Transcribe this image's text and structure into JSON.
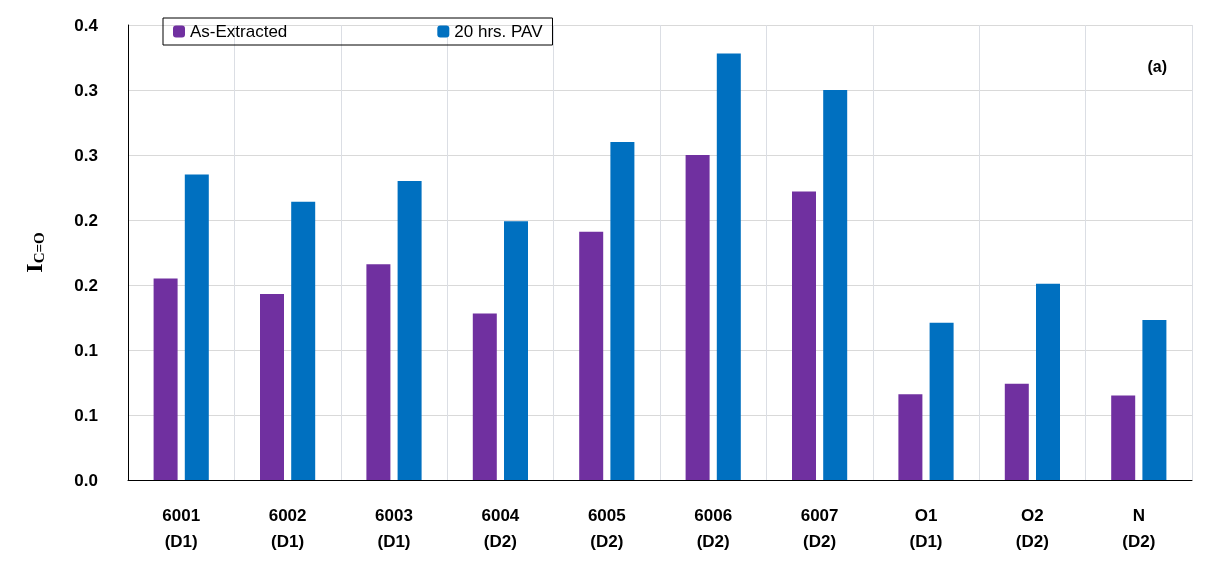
{
  "chart_data": {
    "type": "bar",
    "categories": [
      "6001\n(D1)",
      "6002\n(D1)",
      "6003\n(D1)",
      "6004\n(D2)",
      "6005\n(D2)",
      "6006\n(D2)",
      "6007\n(D2)",
      "O1\n(D1)",
      "O2\n(D2)",
      "N\n(D2)"
    ],
    "series": [
      {
        "name": "As-Extracted",
        "color": "#7030a0",
        "values": [
          0.155,
          0.143,
          0.166,
          0.128,
          0.191,
          0.25,
          0.222,
          0.066,
          0.074,
          0.065
        ]
      },
      {
        "name": "20 hrs. PAV",
        "color": "#0070c0",
        "values": [
          0.235,
          0.214,
          0.23,
          0.199,
          0.26,
          0.328,
          0.3,
          0.121,
          0.151,
          0.123
        ]
      }
    ],
    "ylabel": "I$_{C=O}$",
    "ylim": [
      0,
      0.35
    ],
    "yticks": [
      {
        "value": 0,
        "label": "0.0"
      },
      {
        "value": 0.05,
        "label": "0.1"
      },
      {
        "value": 0.1,
        "label": "0.1"
      },
      {
        "value": 0.15,
        "label": "0.2"
      },
      {
        "value": 0.2,
        "label": "0.2"
      },
      {
        "value": 0.25,
        "label": "0.3"
      },
      {
        "value": 0.3,
        "label": "0.3"
      },
      {
        "value": 0.35,
        "label": "0.4"
      }
    ],
    "annotations": [
      "(a)"
    ],
    "grid": true,
    "legend": "top"
  }
}
